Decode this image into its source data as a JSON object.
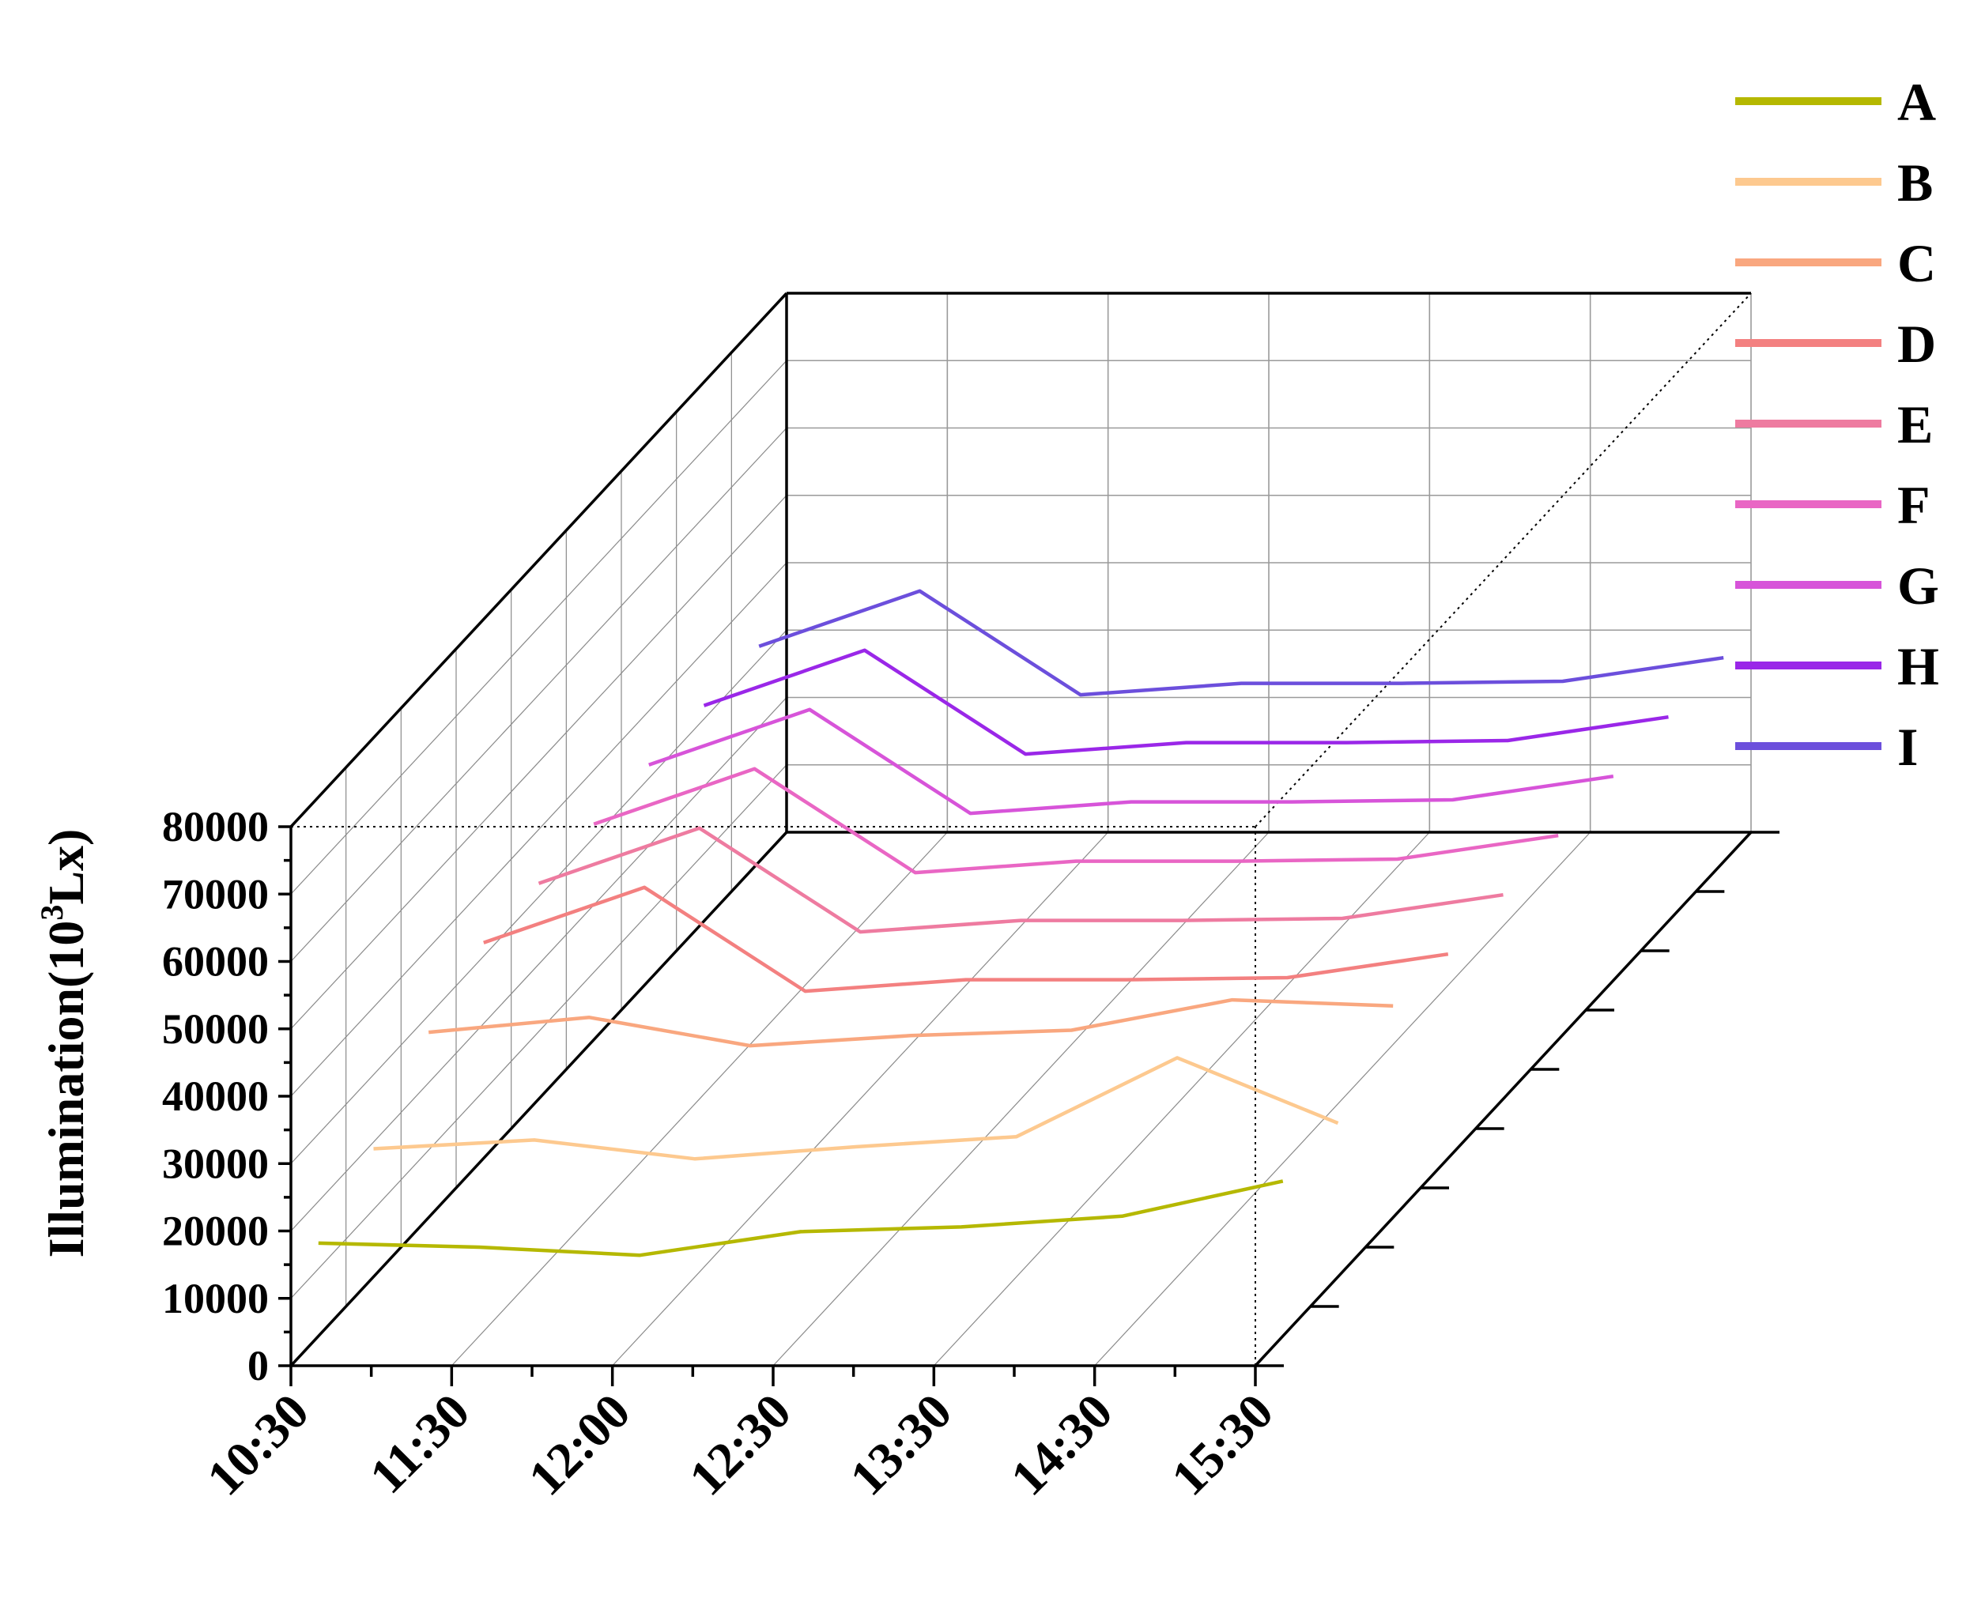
{
  "chart_data": {
    "type": "line",
    "subtype": "3d-waterfall",
    "title": "",
    "ylabel_main": "Illumination(10",
    "ylabel_sup": "3",
    "ylabel_tail": "Lx)",
    "xlabel": "",
    "ylim": [
      0,
      80000
    ],
    "yticks": [
      "0",
      "10000",
      "20000",
      "30000",
      "40000",
      "50000",
      "60000",
      "70000",
      "80000"
    ],
    "categories": [
      "10:30",
      "11:30",
      "12:00",
      "12:30",
      "13:30",
      "14:30",
      "15:30"
    ],
    "grid": true,
    "legend_position": "right",
    "series": [
      {
        "name": "A",
        "color": "#b5b800",
        "values": [
          13800,
          13200,
          12000,
          15500,
          16200,
          17800,
          23000
        ]
      },
      {
        "name": "B",
        "color": "#fdc98f",
        "values": [
          19000,
          20300,
          17500,
          19300,
          20800,
          32500,
          22800
        ]
      },
      {
        "name": "C",
        "color": "#f9a77f",
        "values": [
          27500,
          29700,
          25500,
          27000,
          27800,
          32300,
          31400
        ]
      },
      {
        "name": "D",
        "color": "#f38080",
        "values": [
          32000,
          40200,
          24800,
          26500,
          26500,
          26800,
          30300
        ]
      },
      {
        "name": "E",
        "color": "#ee7ba0",
        "values": [
          32000,
          40200,
          24800,
          26500,
          26500,
          26800,
          30300
        ]
      },
      {
        "name": "F",
        "color": "#e966c4",
        "values": [
          32000,
          40200,
          24800,
          26500,
          26500,
          26800,
          30300
        ]
      },
      {
        "name": "G",
        "color": "#d754d9",
        "values": [
          32000,
          40200,
          24800,
          26500,
          26500,
          26800,
          30300
        ]
      },
      {
        "name": "H",
        "color": "#9a27e8",
        "values": [
          32000,
          40200,
          24800,
          26500,
          26500,
          26800,
          30300
        ]
      },
      {
        "name": "I",
        "color": "#6c4fdc",
        "values": [
          32000,
          40200,
          24800,
          26500,
          26500,
          26800,
          30300
        ]
      }
    ]
  }
}
